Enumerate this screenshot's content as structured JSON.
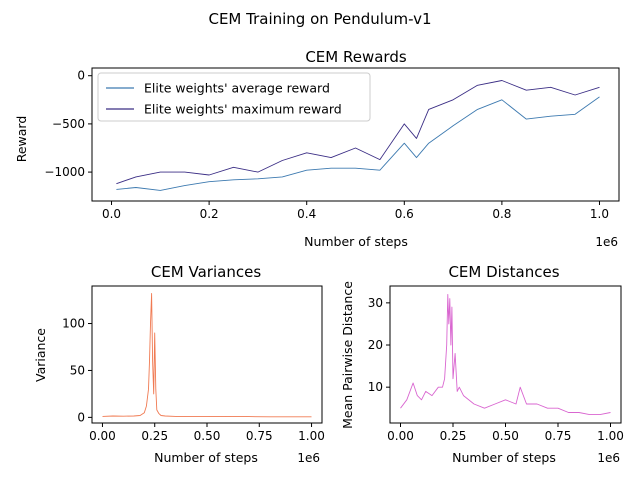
{
  "figure": {
    "suptitle": "CEM Training on Pendulum-v1"
  },
  "chart_data": [
    {
      "type": "line",
      "title": "CEM Rewards",
      "xlabel": "Number of steps",
      "ylabel": "Reward",
      "x_offset_label": "1e6",
      "xlim": [
        -0.04,
        1.04
      ],
      "ylim": [
        -1300,
        80
      ],
      "xticks": [
        0.0,
        0.2,
        0.4,
        0.6,
        0.8,
        1.0
      ],
      "xtick_labels": [
        "0.0",
        "0.2",
        "0.4",
        "0.6",
        "0.8",
        "1.0"
      ],
      "yticks": [
        0,
        -500,
        -1000
      ],
      "ytick_labels": [
        "0",
        "−500",
        "−1000"
      ],
      "legend_position": "upper-left",
      "grid": false,
      "x": [
        0.01,
        0.05,
        0.1,
        0.15,
        0.2,
        0.25,
        0.3,
        0.35,
        0.4,
        0.45,
        0.5,
        0.55,
        0.6,
        0.625,
        0.65,
        0.7,
        0.75,
        0.8,
        0.85,
        0.9,
        0.95,
        1.0
      ],
      "series": [
        {
          "name": "Elite weights' average reward",
          "color": "#3d7ab0",
          "values": [
            -1180,
            -1160,
            -1190,
            -1140,
            -1100,
            -1080,
            -1070,
            -1050,
            -980,
            -960,
            -960,
            -980,
            -700,
            -850,
            -700,
            -520,
            -350,
            -250,
            -450,
            -420,
            -400,
            -220
          ]
        },
        {
          "name": "Elite weights' maximum reward",
          "color": "#3b2e85",
          "values": [
            -1120,
            -1050,
            -1000,
            -1000,
            -1030,
            -950,
            -1000,
            -880,
            -800,
            -850,
            -750,
            -870,
            -500,
            -650,
            -350,
            -250,
            -100,
            -50,
            -150,
            -120,
            -200,
            -120
          ]
        }
      ]
    },
    {
      "type": "line",
      "title": "CEM Variances",
      "xlabel": "Number of steps",
      "ylabel": "Variance",
      "x_offset_label": "1e6",
      "xlim": [
        -0.05,
        1.05
      ],
      "ylim": [
        -6,
        140
      ],
      "xticks": [
        0.0,
        0.25,
        0.5,
        0.75,
        1.0
      ],
      "xtick_labels": [
        "0.00",
        "0.25",
        "0.50",
        "0.75",
        "1.00"
      ],
      "yticks": [
        0,
        50,
        100
      ],
      "ytick_labels": [
        "0",
        "50",
        "100"
      ],
      "grid": false,
      "series": [
        {
          "name": "",
          "color": "#f07a52",
          "x": [
            0.0,
            0.05,
            0.1,
            0.15,
            0.18,
            0.2,
            0.21,
            0.22,
            0.225,
            0.23,
            0.235,
            0.24,
            0.245,
            0.25,
            0.255,
            0.26,
            0.27,
            0.28,
            0.3,
            0.35,
            0.4,
            0.5,
            0.6,
            0.7,
            0.8,
            0.9,
            1.0
          ],
          "values": [
            1,
            1.5,
            1.2,
            1.5,
            2,
            5,
            12,
            30,
            60,
            100,
            132,
            60,
            25,
            90,
            30,
            8,
            4,
            2,
            1.5,
            1,
            0.8,
            0.8,
            1,
            0.8,
            0.6,
            0.6,
            0.6
          ]
        }
      ]
    },
    {
      "type": "line",
      "title": "CEM Distances",
      "xlabel": "Number of steps",
      "ylabel": "Mean Pairwise Distance",
      "x_offset_label": "1e6",
      "xlim": [
        -0.05,
        1.05
      ],
      "ylim": [
        1.5,
        34
      ],
      "xticks": [
        0.0,
        0.25,
        0.5,
        0.75,
        1.0
      ],
      "xtick_labels": [
        "0.00",
        "0.25",
        "0.50",
        "0.75",
        "1.00"
      ],
      "yticks": [
        10,
        20,
        30
      ],
      "ytick_labels": [
        "10",
        "20",
        "30"
      ],
      "grid": false,
      "series": [
        {
          "name": "",
          "color": "#d966d0",
          "x": [
            0.0,
            0.03,
            0.06,
            0.08,
            0.1,
            0.12,
            0.15,
            0.18,
            0.2,
            0.21,
            0.22,
            0.225,
            0.23,
            0.235,
            0.24,
            0.245,
            0.25,
            0.26,
            0.27,
            0.28,
            0.3,
            0.35,
            0.4,
            0.45,
            0.5,
            0.55,
            0.57,
            0.6,
            0.65,
            0.7,
            0.75,
            0.8,
            0.85,
            0.9,
            0.95,
            1.0
          ],
          "values": [
            5,
            7,
            11,
            8,
            7,
            9,
            8,
            10,
            10,
            12,
            20,
            32,
            25,
            31,
            20,
            29,
            12,
            18,
            9,
            10,
            8,
            6,
            5,
            6,
            7,
            6,
            10,
            6,
            6,
            5,
            5,
            4,
            4,
            3.5,
            3.5,
            4
          ]
        }
      ]
    }
  ]
}
